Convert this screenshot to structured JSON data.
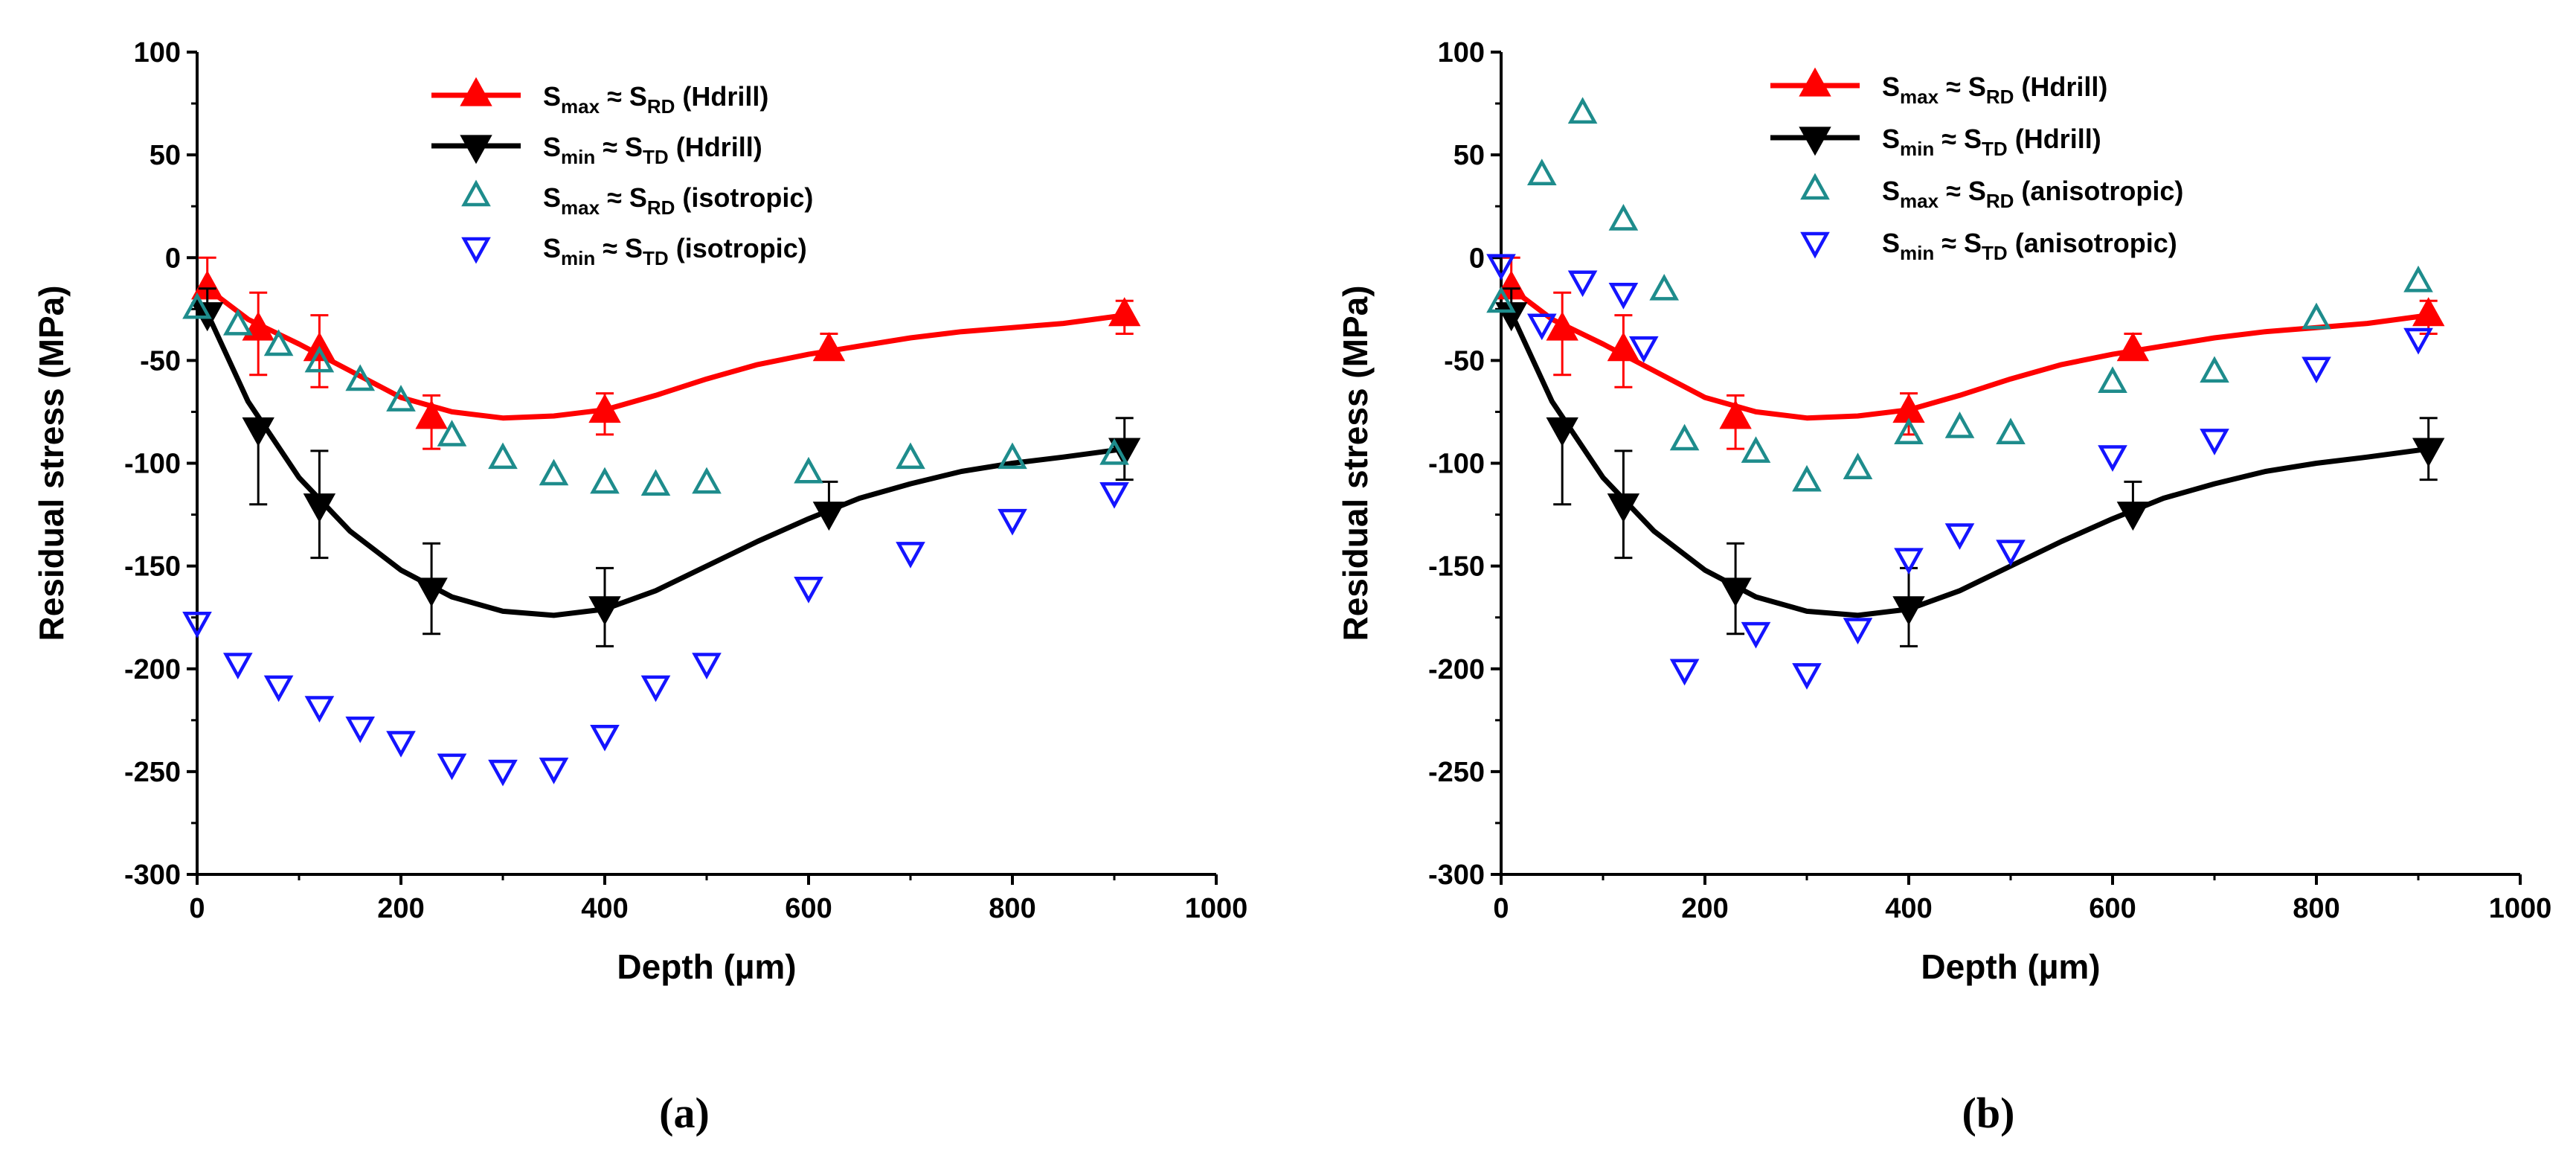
{
  "chart_data": [
    {
      "type": "line",
      "panel": "a",
      "caption": "(a)",
      "xlabel": "Depth (µm)",
      "ylabel": "Residual stress (MPa)",
      "xlim": [
        0,
        1000
      ],
      "ylim": [
        -300,
        100
      ],
      "xticks": [
        0,
        200,
        400,
        600,
        800,
        1000
      ],
      "yticks": [
        -300,
        -250,
        -200,
        -150,
        -100,
        -50,
        0,
        50,
        100
      ],
      "legend_position": "top-right",
      "series": [
        {
          "name": "Smax ≈ SRD (Hdrill)",
          "legend": {
            "sym": "S",
            "sub1": "max",
            "approx": "≈",
            "sym2": "S",
            "sub2": "RD",
            "tail": "(Hdrill)"
          },
          "color": "#ff0000",
          "marker": "triangle-up-filled",
          "fit_line": true,
          "x": [
            10,
            60,
            120,
            230,
            400,
            620,
            910
          ],
          "values": [
            -15,
            -35,
            -45,
            -78,
            -75,
            -45,
            -28
          ],
          "err_up": [
            15,
            18,
            17,
            11,
            9,
            8,
            7
          ],
          "err_down": [
            0,
            22,
            18,
            15,
            11,
            0,
            9
          ],
          "curve": [
            [
              10,
              -15
            ],
            [
              50,
              -30
            ],
            [
              100,
              -42
            ],
            [
              150,
              -55
            ],
            [
              200,
              -68
            ],
            [
              250,
              -75
            ],
            [
              300,
              -78
            ],
            [
              350,
              -77
            ],
            [
              400,
              -74
            ],
            [
              450,
              -67
            ],
            [
              500,
              -59
            ],
            [
              550,
              -52
            ],
            [
              600,
              -47
            ],
            [
              650,
              -43
            ],
            [
              700,
              -39
            ],
            [
              750,
              -36
            ],
            [
              800,
              -34
            ],
            [
              850,
              -32
            ],
            [
              910,
              -28
            ]
          ]
        },
        {
          "name": "Smin ≈ STD (Hdrill)",
          "legend": {
            "sym": "S",
            "sub1": "min",
            "approx": "≈",
            "sym2": "S",
            "sub2": "TD",
            "tail": "(Hdrill)"
          },
          "color": "#000000",
          "marker": "triangle-down-filled",
          "fit_line": true,
          "x": [
            10,
            60,
            120,
            230,
            400,
            620,
            910
          ],
          "values": [
            -27,
            -83,
            -120,
            -161,
            -170,
            -124,
            -93
          ],
          "err_up": [
            12,
            0,
            26,
            22,
            19,
            15,
            15
          ],
          "err_down": [
            0,
            37,
            26,
            22,
            19,
            0,
            15
          ],
          "curve": [
            [
              10,
              -27
            ],
            [
              50,
              -70
            ],
            [
              100,
              -107
            ],
            [
              150,
              -133
            ],
            [
              200,
              -152
            ],
            [
              250,
              -165
            ],
            [
              300,
              -172
            ],
            [
              350,
              -174
            ],
            [
              400,
              -171
            ],
            [
              450,
              -162
            ],
            [
              500,
              -150
            ],
            [
              550,
              -138
            ],
            [
              600,
              -127
            ],
            [
              650,
              -117
            ],
            [
              700,
              -110
            ],
            [
              750,
              -104
            ],
            [
              800,
              -100
            ],
            [
              850,
              -97
            ],
            [
              910,
              -93
            ]
          ]
        },
        {
          "name": "Smax ≈ SRD (isotropic)",
          "legend": {
            "sym": "S",
            "sub1": "max",
            "approx": "≈",
            "sym2": "S",
            "sub2": "RD",
            "tail": "(isotropic)"
          },
          "color": "#1e8c8c",
          "marker": "triangle-up-open",
          "x": [
            0,
            40,
            80,
            120,
            160,
            200,
            250,
            300,
            350,
            400,
            450,
            500,
            600,
            700,
            800,
            900
          ],
          "values": [
            -25,
            -33,
            -43,
            -51,
            -60,
            -70,
            -87,
            -98,
            -106,
            -110,
            -111,
            -110,
            -105,
            -98,
            -98,
            -96
          ]
        },
        {
          "name": "Smin ≈ STD (isotropic)",
          "legend": {
            "sym": "S",
            "sub1": "min",
            "approx": "≈",
            "sym2": "S",
            "sub2": "TD",
            "tail": "(isotropic)"
          },
          "color": "#1414ff",
          "marker": "triangle-down-open",
          "x": [
            0,
            40,
            80,
            120,
            160,
            200,
            250,
            300,
            350,
            400,
            450,
            500,
            600,
            700,
            800,
            900
          ],
          "values": [
            -177,
            -197,
            -208,
            -218,
            -228,
            -235,
            -246,
            -249,
            -248,
            -232,
            -208,
            -197,
            -160,
            -143,
            -127,
            -114
          ]
        }
      ]
    },
    {
      "type": "line",
      "panel": "b",
      "caption": "(b)",
      "xlabel": "Depth (µm)",
      "ylabel": "Residual stress (MPa)",
      "xlim": [
        0,
        1000
      ],
      "ylim": [
        -300,
        100
      ],
      "xticks": [
        0,
        200,
        400,
        600,
        800,
        1000
      ],
      "yticks": [
        -300,
        -250,
        -200,
        -150,
        -100,
        -50,
        0,
        50,
        100
      ],
      "legend_position": "top-right",
      "series": [
        {
          "name": "Smax ≈ SRD (Hdrill)",
          "legend": {
            "sym": "S",
            "sub1": "max",
            "approx": "≈",
            "sym2": "S",
            "sub2": "RD",
            "tail": "(Hdrill)"
          },
          "color": "#ff0000",
          "marker": "triangle-up-filled",
          "fit_line": true,
          "x": [
            10,
            60,
            120,
            230,
            400,
            620,
            910
          ],
          "values": [
            -15,
            -35,
            -45,
            -78,
            -75,
            -45,
            -28
          ],
          "err_up": [
            15,
            18,
            17,
            11,
            9,
            8,
            7
          ],
          "err_down": [
            0,
            22,
            18,
            15,
            11,
            0,
            9
          ],
          "curve": [
            [
              10,
              -15
            ],
            [
              50,
              -30
            ],
            [
              100,
              -42
            ],
            [
              150,
              -55
            ],
            [
              200,
              -68
            ],
            [
              250,
              -75
            ],
            [
              300,
              -78
            ],
            [
              350,
              -77
            ],
            [
              400,
              -74
            ],
            [
              450,
              -67
            ],
            [
              500,
              -59
            ],
            [
              550,
              -52
            ],
            [
              600,
              -47
            ],
            [
              650,
              -43
            ],
            [
              700,
              -39
            ],
            [
              750,
              -36
            ],
            [
              800,
              -34
            ],
            [
              850,
              -32
            ],
            [
              910,
              -28
            ]
          ]
        },
        {
          "name": "Smin ≈ STD (Hdrill)",
          "legend": {
            "sym": "S",
            "sub1": "min",
            "approx": "≈",
            "sym2": "S",
            "sub2": "TD",
            "tail": "(Hdrill)"
          },
          "color": "#000000",
          "marker": "triangle-down-filled",
          "fit_line": true,
          "x": [
            10,
            60,
            120,
            230,
            400,
            620,
            910
          ],
          "values": [
            -27,
            -83,
            -120,
            -161,
            -170,
            -124,
            -93
          ],
          "err_up": [
            12,
            0,
            26,
            22,
            19,
            15,
            15
          ],
          "err_down": [
            0,
            37,
            26,
            22,
            19,
            0,
            15
          ],
          "curve": [
            [
              10,
              -27
            ],
            [
              50,
              -70
            ],
            [
              100,
              -107
            ],
            [
              150,
              -133
            ],
            [
              200,
              -152
            ],
            [
              250,
              -165
            ],
            [
              300,
              -172
            ],
            [
              350,
              -174
            ],
            [
              400,
              -171
            ],
            [
              450,
              -162
            ],
            [
              500,
              -150
            ],
            [
              550,
              -138
            ],
            [
              600,
              -127
            ],
            [
              650,
              -117
            ],
            [
              700,
              -110
            ],
            [
              750,
              -104
            ],
            [
              800,
              -100
            ],
            [
              850,
              -97
            ],
            [
              910,
              -93
            ]
          ]
        },
        {
          "name": "Smax ≈ SRD (anisotropic)",
          "legend": {
            "sym": "S",
            "sub1": "max",
            "approx": "≈",
            "sym2": "S",
            "sub2": "RD",
            "tail": "(anisotropic)"
          },
          "color": "#1e8c8c",
          "marker": "triangle-up-open",
          "x": [
            0,
            40,
            80,
            120,
            160,
            180,
            250,
            300,
            350,
            400,
            450,
            500,
            600,
            700,
            800,
            900
          ],
          "values": [
            -22,
            40,
            70,
            18,
            -16,
            -89,
            -95,
            -109,
            -103,
            -86,
            -83,
            -86,
            -61,
            -56,
            -30,
            -12
          ]
        },
        {
          "name": "Smin ≈ STD (anisotropic)",
          "legend": {
            "sym": "S",
            "sub1": "min",
            "approx": "≈",
            "sym2": "S",
            "sub2": "TD",
            "tail": "(anisotropic)"
          },
          "color": "#1414ff",
          "marker": "triangle-down-open",
          "x": [
            0,
            40,
            80,
            120,
            140,
            180,
            250,
            300,
            350,
            400,
            450,
            500,
            600,
            700,
            800,
            900
          ],
          "values": [
            -3,
            -32,
            -11,
            -17,
            -43,
            -200,
            -182,
            -202,
            -180,
            -146,
            -134,
            -142,
            -96,
            -88,
            -53,
            -39
          ]
        }
      ]
    }
  ]
}
